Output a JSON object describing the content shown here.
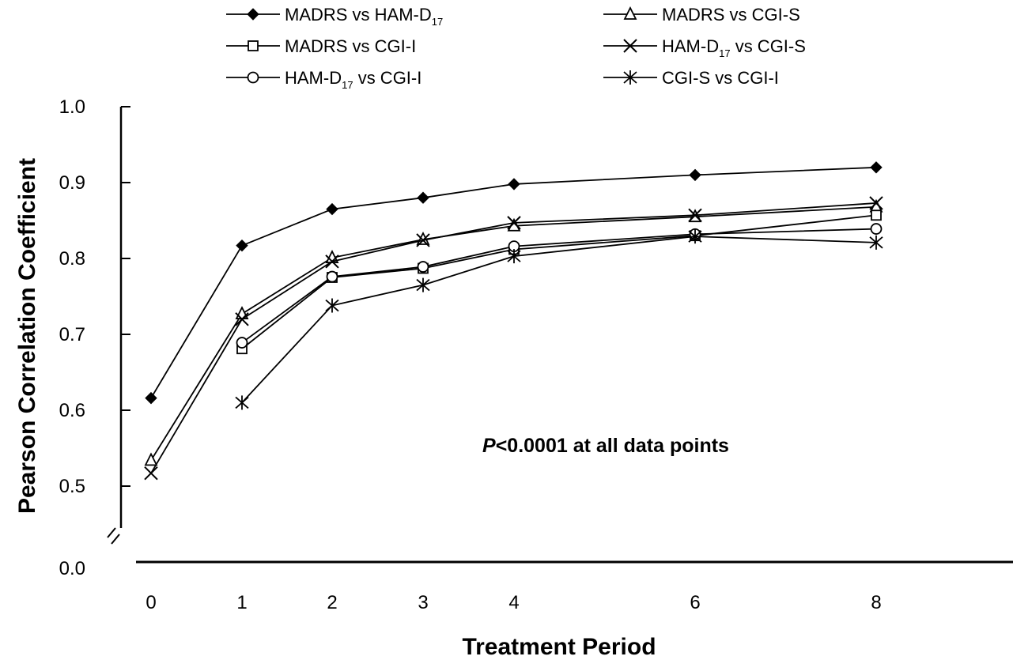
{
  "chart_data": {
    "type": "line",
    "title": "",
    "xlabel": "Treatment Period",
    "ylabel": "Pearson Correlation Coefficient",
    "x": [
      0,
      1,
      2,
      3,
      4,
      6,
      8
    ],
    "x_tick_labels": [
      "0",
      "1",
      "2",
      "3",
      "4",
      "6",
      "8"
    ],
    "y_tick_labels": [
      "1.0",
      "0.9",
      "0.8",
      "0.7",
      "0.6",
      "0.5",
      "0.0"
    ],
    "ylim": [
      0.5,
      1.0
    ],
    "y_axis_break": true,
    "grid": false,
    "legend_position": "top",
    "annotation": {
      "italic": "P",
      "rest": "<0.0001 at all data points"
    },
    "series": [
      {
        "name": "MADRS vs HAM-D17",
        "label_main": "MADRS vs HAM-D",
        "label_sub": "17",
        "label_after": "",
        "marker": "filled-diamond",
        "points": [
          [
            0,
            0.616
          ],
          [
            1,
            0.817
          ],
          [
            2,
            0.865
          ],
          [
            3,
            0.88
          ],
          [
            4,
            0.898
          ],
          [
            6,
            0.91
          ],
          [
            8,
            0.92
          ]
        ]
      },
      {
        "name": "MADRS vs CGI-S",
        "label_main": "MADRS vs CGI-S",
        "label_sub": "",
        "label_after": "",
        "marker": "open-triangle",
        "points": [
          [
            0,
            0.534
          ],
          [
            1,
            0.727
          ],
          [
            2,
            0.801
          ],
          [
            3,
            0.825
          ],
          [
            4,
            0.843
          ],
          [
            6,
            0.855
          ],
          [
            8,
            0.868
          ]
        ]
      },
      {
        "name": "MADRS vs CGI-I",
        "label_main": "MADRS vs CGI-I",
        "label_sub": "",
        "label_after": "",
        "marker": "open-square",
        "points": [
          [
            1,
            0.681
          ],
          [
            2,
            0.775
          ],
          [
            3,
            0.787
          ],
          [
            4,
            0.812
          ],
          [
            6,
            0.83
          ],
          [
            8,
            0.857
          ]
        ]
      },
      {
        "name": "HAM-D17 vs CGI-S",
        "label_main": "HAM-D",
        "label_sub": "17",
        "label_after": " vs CGI-S",
        "marker": "x-cross",
        "points": [
          [
            0,
            0.517
          ],
          [
            1,
            0.72
          ],
          [
            2,
            0.796
          ],
          [
            3,
            0.824
          ],
          [
            4,
            0.847
          ],
          [
            6,
            0.857
          ],
          [
            8,
            0.873
          ]
        ]
      },
      {
        "name": "HAM-D17 vs CGI-I",
        "label_main": "HAM-D",
        "label_sub": "17",
        "label_after": " vs CGI-I",
        "marker": "open-circle",
        "points": [
          [
            1,
            0.689
          ],
          [
            2,
            0.776
          ],
          [
            3,
            0.789
          ],
          [
            4,
            0.816
          ],
          [
            6,
            0.832
          ],
          [
            8,
            0.839
          ]
        ]
      },
      {
        "name": "CGI-S vs CGI-I",
        "label_main": "CGI-S vs CGI-I",
        "label_sub": "",
        "label_after": "",
        "marker": "asterisk",
        "points": [
          [
            1,
            0.61
          ],
          [
            2,
            0.738
          ],
          [
            3,
            0.765
          ],
          [
            4,
            0.803
          ],
          [
            6,
            0.829
          ],
          [
            8,
            0.821
          ]
        ]
      }
    ]
  }
}
